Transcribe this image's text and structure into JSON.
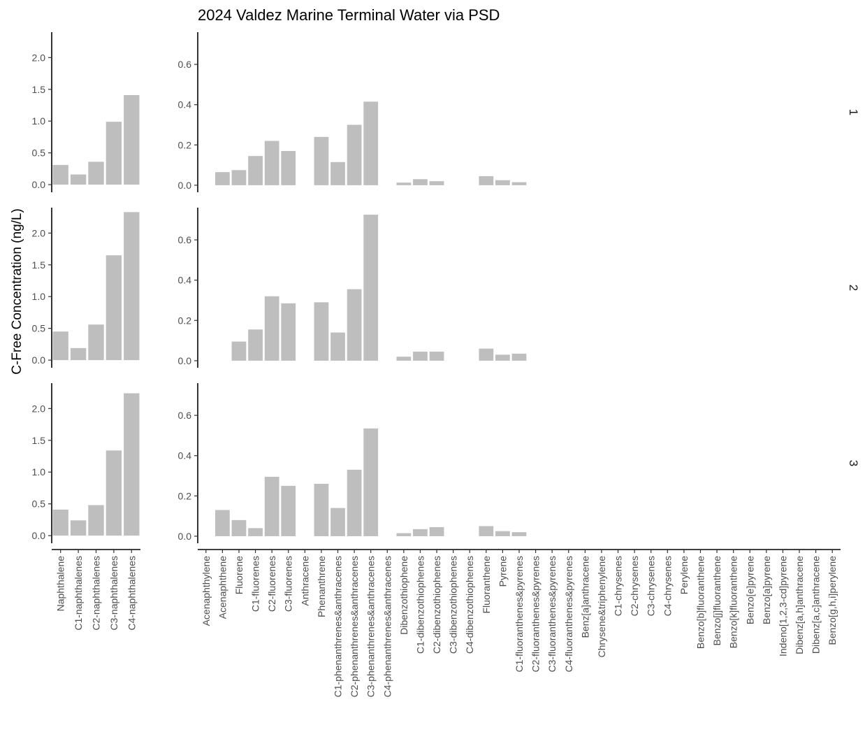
{
  "chart_data": {
    "type": "bar",
    "title": "2024 Valdez Marine Terminal Water via PSD",
    "ylabel": "C-Free Concentration (ng/L)",
    "xlabel": "",
    "bar_color": "#bebebe",
    "grid": false,
    "facet_rows": [
      "1",
      "2",
      "3"
    ],
    "panels": [
      {
        "name": "naphthalenes",
        "ylim": [
          -0.12,
          2.4
        ],
        "yticks": [
          0.0,
          0.5,
          1.0,
          1.5,
          2.0
        ],
        "categories": [
          "Naphthalene",
          "C1-naphthalenes",
          "C2-naphthalenes",
          "C3-naphthalenes",
          "C4-naphthalenes"
        ],
        "series": [
          {
            "facet": "1",
            "values": [
              0.31,
              0.16,
              0.36,
              0.99,
              1.41
            ]
          },
          {
            "facet": "2",
            "values": [
              0.45,
              0.19,
              0.56,
              1.65,
              2.33
            ]
          },
          {
            "facet": "3",
            "values": [
              0.41,
              0.24,
              0.48,
              1.34,
              2.24
            ]
          }
        ]
      },
      {
        "name": "other-pahs",
        "ylim": [
          -0.035,
          0.76
        ],
        "yticks": [
          0.0,
          0.2,
          0.4,
          0.6
        ],
        "categories": [
          "Acenaphthylene",
          "Acenaphthene",
          "Fluorene",
          "C1-fluorenes",
          "C2-fluorenes",
          "C3-fluorenes",
          "Anthracene",
          "Phenanthrene",
          "C1-phenanthrenes&anthracenes",
          "C2-phenanthrenes&anthracenes",
          "C3-phenanthrenes&anthracenes",
          "C4-phenanthrenes&anthracenes",
          "Dibenzothiophene",
          "C1-dibenzothiophenes",
          "C2-dibenzothiophenes",
          "C3-dibenzothiophenes",
          "C4-dibenzothiophenes",
          "Fluoranthene",
          "Pyrene",
          "C1-fluoranthenes&pyrenes",
          "C2-fluoranthenes&pyrenes",
          "C3-fluoranthenes&pyrenes",
          "C4-fluoranthenes&pyrenes",
          "Benz[a]anthracene",
          "Chrysene&triphenylene",
          "C1-chrysenes",
          "C2-chrysenes",
          "C3-chrysenes",
          "C4-chrysenes",
          "Perylene",
          "Benzo[b]fluoranthene",
          "Benzo[j]fluoranthene",
          "Benzo[k]fluoranthene",
          "Benzo[e]pyrene",
          "Benzo[a]pyrene",
          "Indeno[1,2,3-cd]pyrene",
          "Dibenz[a,h]anthracene",
          "Dibenz[a,c]anthracene",
          "Benzo[g,h,i]perylene"
        ],
        "series": [
          {
            "facet": "1",
            "values": [
              0,
              0.065,
              0.075,
              0.145,
              0.22,
              0.17,
              0,
              0.24,
              0.115,
              0.3,
              0.415,
              0,
              0.013,
              0.03,
              0.02,
              0,
              0,
              0.045,
              0.025,
              0.015,
              0,
              0,
              0,
              0,
              0,
              0,
              0,
              0,
              0,
              0,
              0,
              0,
              0,
              0,
              0,
              0,
              0,
              0,
              0
            ]
          },
          {
            "facet": "2",
            "values": [
              0,
              0,
              0.095,
              0.155,
              0.32,
              0.285,
              0,
              0.29,
              0.14,
              0.355,
              0.725,
              0,
              0.02,
              0.045,
              0.045,
              0,
              0,
              0.06,
              0.03,
              0.035,
              0,
              0,
              0,
              0,
              0,
              0,
              0,
              0,
              0,
              0,
              0,
              0,
              0,
              0,
              0,
              0,
              0,
              0,
              0
            ]
          },
          {
            "facet": "3",
            "values": [
              0,
              0.13,
              0.08,
              0.04,
              0.295,
              0.25,
              0,
              0.26,
              0.14,
              0.33,
              0.535,
              0,
              0.015,
              0.035,
              0.045,
              0,
              0,
              0.05,
              0.025,
              0.02,
              0,
              0,
              0,
              0,
              0,
              0,
              0,
              0,
              0,
              0,
              0,
              0,
              0,
              0,
              0,
              0,
              0,
              0,
              0
            ]
          }
        ]
      }
    ]
  }
}
